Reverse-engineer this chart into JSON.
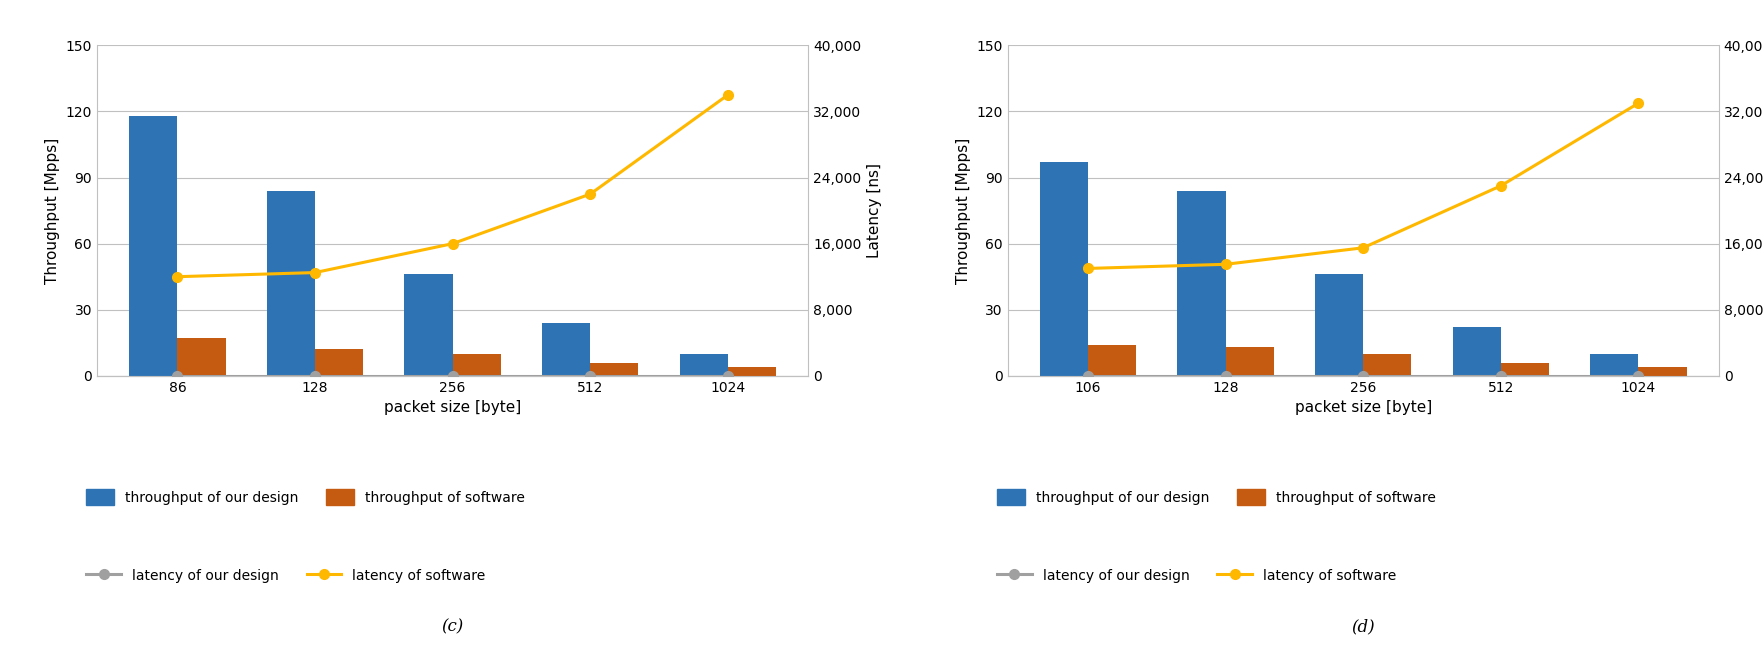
{
  "charts": [
    {
      "label": "(c)",
      "categories": [
        "86",
        "128",
        "256",
        "512",
        "1024"
      ],
      "throughput_design": [
        118,
        84,
        46,
        24,
        10
      ],
      "throughput_software": [
        17,
        12,
        10,
        6,
        4
      ],
      "latency_design": [
        0,
        0,
        0,
        0,
        0
      ],
      "latency_software": [
        12000,
        12500,
        16000,
        22000,
        34000
      ]
    },
    {
      "label": "(d)",
      "categories": [
        "106",
        "128",
        "256",
        "512",
        "1024"
      ],
      "throughput_design": [
        97,
        84,
        46,
        22,
        10
      ],
      "throughput_software": [
        14,
        13,
        10,
        6,
        4
      ],
      "latency_design": [
        0,
        0,
        0,
        0,
        0
      ],
      "latency_software": [
        13000,
        13500,
        15500,
        23000,
        33000
      ]
    }
  ],
  "xlabel": "packet size [byte]",
  "ylabel_left": "Throughput [Mpps]",
  "ylabel_right": "Latency [ns]",
  "ylim_left": [
    0,
    150
  ],
  "ylim_right": [
    0,
    40000
  ],
  "yticks_left": [
    0,
    30,
    60,
    90,
    120,
    150
  ],
  "yticks_right": [
    0,
    8000,
    16000,
    24000,
    32000,
    40000
  ],
  "ytick_labels_right": [
    "0",
    "8,000",
    "16,000",
    "24,000",
    "32,000",
    "40,000"
  ],
  "color_blue": "#2E74B5",
  "color_orange": "#C55A11",
  "color_gray": "#A0A0A0",
  "color_yellow": "#FFB800",
  "legend_labels": [
    "throughput of our design",
    "throughput of software",
    "latency of our design",
    "latency of software"
  ],
  "background_color": "#FFFFFF",
  "grid_color": "#C0C0C0",
  "bar_width": 0.35,
  "axis_fontsize": 11,
  "tick_fontsize": 10,
  "legend_fontsize": 10,
  "label_fontsize": 12
}
